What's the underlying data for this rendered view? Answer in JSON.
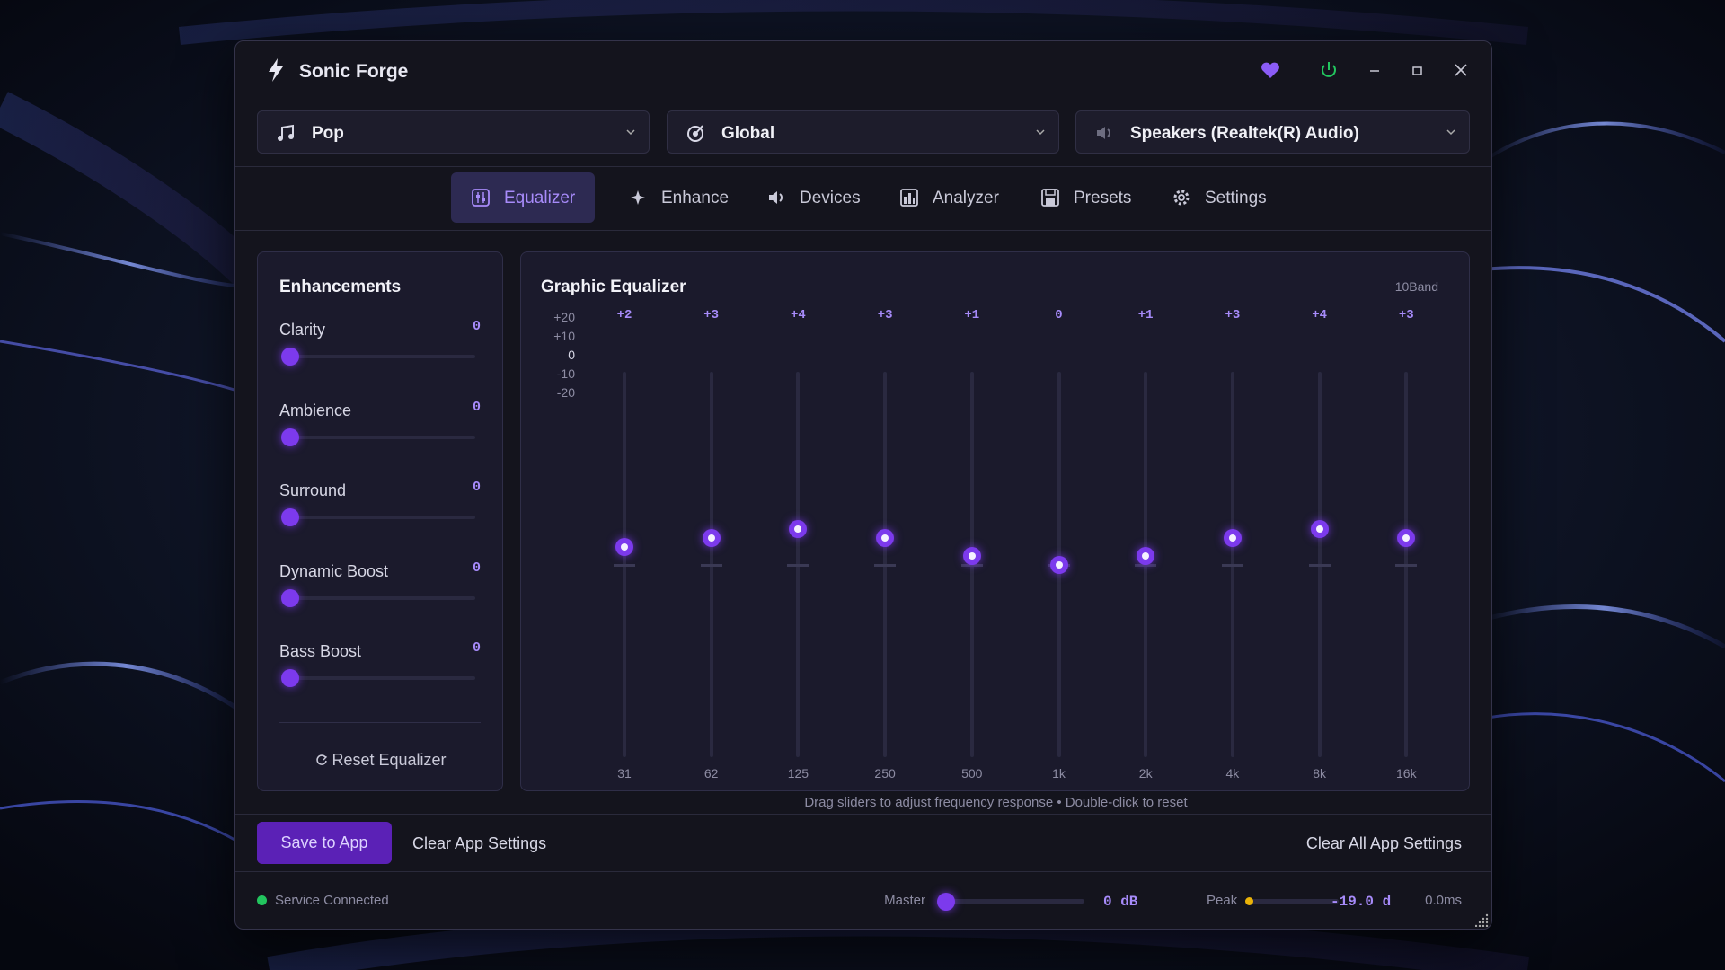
{
  "window": {
    "title": "Sonic Forge"
  },
  "selectors": {
    "profile": "Pop",
    "scope": "Global",
    "device": "Speakers (Realtek(R) Audio)"
  },
  "tabs": [
    {
      "label": "Equalizer",
      "active": true
    },
    {
      "label": "Enhance",
      "active": false
    },
    {
      "label": "Devices",
      "active": false
    },
    {
      "label": "Analyzer",
      "active": false
    },
    {
      "label": "Presets",
      "active": false
    },
    {
      "label": "Settings",
      "active": false
    }
  ],
  "enhancements": {
    "title": "Enhancements",
    "items": [
      {
        "name": "Clarity",
        "value": 0
      },
      {
        "name": "Ambience",
        "value": 0
      },
      {
        "name": "Surround",
        "value": 0
      },
      {
        "name": "Dynamic Boost",
        "value": 0
      },
      {
        "name": "Bass Boost",
        "value": 0
      }
    ],
    "reset": "Reset Equalizer"
  },
  "equalizer": {
    "title": "Graphic Equalizer",
    "mode": "10Band",
    "scale": [
      {
        "value": 20,
        "label": "+20"
      },
      {
        "value": 10,
        "label": "+10"
      },
      0,
      {
        "value": -10,
        "label": "-10"
      },
      {
        "value": -20,
        "label": "-20"
      }
    ],
    "bands": [
      {
        "freq": "31",
        "value": 2,
        "label": "+2"
      },
      {
        "freq": "62",
        "value": 3,
        "label": "+3"
      },
      {
        "freq": "125",
        "value": 4,
        "label": "+4"
      },
      {
        "freq": "250",
        "value": 3,
        "label": "+3"
      },
      {
        "freq": "500",
        "value": 1,
        "label": "+1"
      },
      {
        "freq": "1k",
        "value": 0
      },
      {
        "freq": "2k",
        "value": 1,
        "label": "+1"
      },
      {
        "freq": "4k",
        "value": 3,
        "label": "+3"
      },
      {
        "freq": "8k",
        "value": 4,
        "label": "+4"
      },
      {
        "freq": "16k",
        "value": 3,
        "label": "+3"
      }
    ],
    "hint": "Drag sliders to adjust frequency response • Double-click to reset"
  },
  "actions": {
    "save": "Save to App",
    "clear": "Clear App Settings",
    "clear_all": "Clear All App Settings"
  },
  "status": {
    "service": "Service Connected",
    "master_label": "Master",
    "master_value": 0,
    "master_value_label": "0 dB",
    "peak_label": "Peak",
    "peak_value": -19.0,
    "peak_value_label": "-19.0 d",
    "latency": "0.0ms"
  }
}
